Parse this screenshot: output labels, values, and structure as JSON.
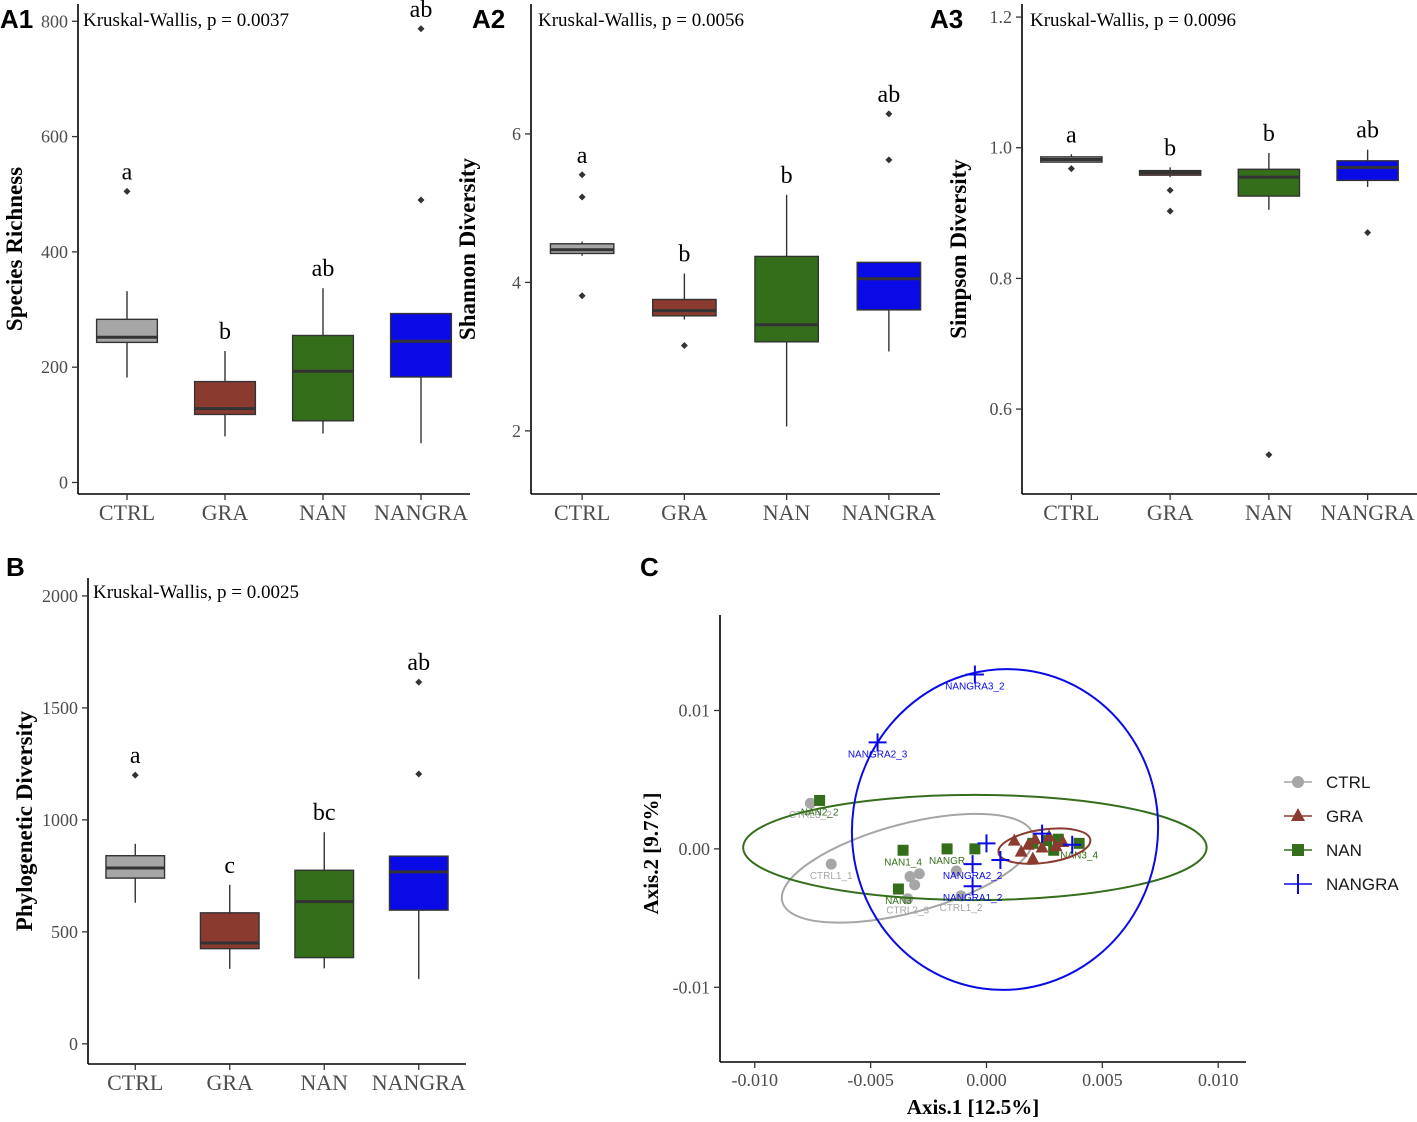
{
  "chart_data": [
    {
      "id": "A1",
      "panel_label": "A1",
      "type": "box",
      "title": "",
      "stat_text": "Kruskal-Wallis, p = 0.0037",
      "xlabel": "",
      "ylabel": "Species Richness",
      "ylim": [
        -20,
        830
      ],
      "yticks": [
        0,
        200,
        400,
        600,
        800
      ],
      "ytick_labels": [
        "0",
        "200",
        "400",
        "600",
        "800"
      ],
      "categories": [
        "CTRL",
        "GRA",
        "NAN",
        "NANGRA"
      ],
      "boxes": [
        {
          "group": "CTRL",
          "low": 182,
          "q1": 243,
          "median": 252,
          "q3": 283,
          "high": 332,
          "outliers": [
            505
          ],
          "letter": "a"
        },
        {
          "group": "GRA",
          "low": 80,
          "q1": 118,
          "median": 128,
          "q3": 175,
          "high": 228,
          "outliers": [],
          "letter": "b"
        },
        {
          "group": "NAN",
          "low": 85,
          "q1": 107,
          "median": 193,
          "q3": 255,
          "high": 337,
          "outliers": [],
          "letter": "ab"
        },
        {
          "group": "NANGRA",
          "low": 68,
          "q1": 183,
          "median": 245,
          "q3": 293,
          "high": 293,
          "outliers": [
            490,
            787
          ],
          "letter": "ab"
        }
      ]
    },
    {
      "id": "A2",
      "panel_label": "A2",
      "type": "box",
      "title": "",
      "stat_text": "Kruskal-Wallis, p = 0.0056",
      "xlabel": "",
      "ylabel": "Shannon Diversity",
      "ylim": [
        1.15,
        7.75
      ],
      "yticks": [
        2,
        4,
        6
      ],
      "ytick_labels": [
        "2",
        "4",
        "6"
      ],
      "categories": [
        "CTRL",
        "GRA",
        "NAN",
        "NANGRA"
      ],
      "boxes": [
        {
          "group": "CTRL",
          "low": 4.36,
          "q1": 4.39,
          "median": 4.44,
          "q3": 4.52,
          "high": 4.55,
          "outliers": [
            5.45,
            5.15,
            3.82
          ],
          "letter": "a"
        },
        {
          "group": "GRA",
          "low": 3.5,
          "q1": 3.55,
          "median": 3.62,
          "q3": 3.77,
          "high": 4.12,
          "outliers": [
            3.15
          ],
          "letter": "b"
        },
        {
          "group": "NAN",
          "low": 2.06,
          "q1": 3.2,
          "median": 3.43,
          "q3": 4.35,
          "high": 5.18,
          "outliers": [],
          "letter": "b"
        },
        {
          "group": "NANGRA",
          "low": 3.07,
          "q1": 3.63,
          "median": 4.05,
          "q3": 4.27,
          "high": 4.27,
          "outliers": [
            5.65,
            6.27
          ],
          "letter": "ab"
        }
      ]
    },
    {
      "id": "A3",
      "panel_label": "A3",
      "type": "box",
      "title": "",
      "stat_text": "Kruskal-Wallis, p = 0.0096",
      "xlabel": "",
      "ylabel": "Simpson Diversity",
      "ylim": [
        0.47,
        1.22
      ],
      "yticks": [
        0.6,
        0.8,
        1.0,
        1.2
      ],
      "ytick_labels": [
        "0.6",
        "0.8",
        "1.0",
        "1.2"
      ],
      "categories": [
        "CTRL",
        "GRA",
        "NAN",
        "NANGRA"
      ],
      "boxes": [
        {
          "group": "CTRL",
          "low": 0.977,
          "q1": 0.978,
          "median": 0.982,
          "q3": 0.986,
          "high": 0.99,
          "outliers": [
            0.968
          ],
          "letter": "a"
        },
        {
          "group": "GRA",
          "low": 0.955,
          "q1": 0.958,
          "median": 0.962,
          "q3": 0.965,
          "high": 0.97,
          "outliers": [
            0.935,
            0.903
          ],
          "letter": "b"
        },
        {
          "group": "NAN",
          "low": 0.905,
          "q1": 0.926,
          "median": 0.955,
          "q3": 0.967,
          "high": 0.992,
          "outliers": [
            0.53
          ],
          "letter": "b"
        },
        {
          "group": "NANGRA",
          "low": 0.94,
          "q1": 0.95,
          "median": 0.97,
          "q3": 0.98,
          "high": 0.997,
          "outliers": [
            0.87
          ],
          "letter": "ab"
        }
      ]
    },
    {
      "id": "B",
      "panel_label": "B",
      "type": "box",
      "title": "",
      "stat_text": "Kruskal-Wallis, p = 0.0025",
      "xlabel": "",
      "ylabel": "Phylogenetic Diversity",
      "ylim": [
        -90,
        2080
      ],
      "yticks": [
        0,
        500,
        1000,
        1500,
        2000
      ],
      "ytick_labels": [
        "0",
        "500",
        "1000",
        "1500",
        "2000"
      ],
      "categories": [
        "CTRL",
        "GRA",
        "NAN",
        "NANGRA"
      ],
      "boxes": [
        {
          "group": "CTRL",
          "low": 630,
          "q1": 740,
          "median": 785,
          "q3": 840,
          "high": 893,
          "outliers": [
            1200
          ],
          "letter": "a"
        },
        {
          "group": "GRA",
          "low": 335,
          "q1": 425,
          "median": 450,
          "q3": 585,
          "high": 710,
          "outliers": [],
          "letter": "c"
        },
        {
          "group": "NAN",
          "low": 337,
          "q1": 385,
          "median": 635,
          "q3": 775,
          "high": 945,
          "outliers": [],
          "letter": "bc"
        },
        {
          "group": "NANGRA",
          "low": 290,
          "q1": 597,
          "median": 768,
          "q3": 838,
          "high": 838,
          "outliers": [
            1205,
            1615
          ],
          "letter": "ab"
        }
      ]
    },
    {
      "id": "C",
      "panel_label": "C",
      "type": "scatter",
      "title": "",
      "xlabel": "Axis.1   [12.5%]",
      "ylabel": "Axis.2   [9.7%]",
      "xlim": [
        -0.0115,
        0.0112
      ],
      "ylim": [
        -0.0154,
        0.0169
      ],
      "xticks": [
        -0.01,
        -0.005,
        0.0,
        0.005,
        0.01
      ],
      "xtick_labels": [
        "-0.010",
        "-0.005",
        "0.000",
        "0.005",
        "0.010"
      ],
      "yticks": [
        -0.01,
        0.0,
        0.01
      ],
      "ytick_labels": [
        "-0.01",
        "0.00",
        "0.01"
      ],
      "legend": [
        "CTRL",
        "GRA",
        "NAN",
        "NANGRA"
      ],
      "legend_position": "right",
      "series": [
        {
          "name": "CTRL",
          "marker": "circle",
          "points": [
            {
              "x": -0.0076,
              "y": 0.0033,
              "label": "CTRL3_2"
            },
            {
              "x": -0.0067,
              "y": -0.0011,
              "label": "CTRL1_1"
            },
            {
              "x": -0.0033,
              "y": -0.002,
              "label": ""
            },
            {
              "x": -0.0031,
              "y": -0.0026,
              "label": ""
            },
            {
              "x": -0.0029,
              "y": -0.0018,
              "label": ""
            },
            {
              "x": -0.0034,
              "y": -0.0036,
              "label": "CTRL2_3"
            },
            {
              "x": -0.0013,
              "y": -0.0016,
              "label": ""
            },
            {
              "x": -0.0011,
              "y": -0.0034,
              "label": "CTRL1_2"
            }
          ],
          "ellipse": {
            "cx": -0.0034,
            "cy": -0.0014,
            "rx": 0.0056,
            "ry": 0.0032,
            "angle_deg": 15
          }
        },
        {
          "name": "GRA",
          "marker": "triangle",
          "points": [
            {
              "x": 0.0012,
              "y": 0.0006,
              "label": ""
            },
            {
              "x": 0.0015,
              "y": -0.0002,
              "label": ""
            },
            {
              "x": 0.0018,
              "y": 0.0003,
              "label": ""
            },
            {
              "x": 0.0021,
              "y": 0.0007,
              "label": ""
            },
            {
              "x": 0.0024,
              "y": 0.0001,
              "label": ""
            },
            {
              "x": 0.0027,
              "y": 0.0009,
              "label": ""
            },
            {
              "x": 0.003,
              "y": 0.0002,
              "label": ""
            },
            {
              "x": 0.0033,
              "y": 0.0005,
              "label": ""
            },
            {
              "x": 0.002,
              "y": -0.0007,
              "label": ""
            }
          ],
          "ellipse": {
            "cx": 0.0025,
            "cy": 0.0002,
            "rx": 0.002,
            "ry": 0.0012,
            "angle_deg": 8
          }
        },
        {
          "name": "NAN",
          "marker": "square",
          "points": [
            {
              "x": -0.0072,
              "y": 0.0035,
              "label": "NAN2_2"
            },
            {
              "x": -0.0038,
              "y": -0.0029,
              "label": "NAN3"
            },
            {
              "x": -0.0036,
              "y": -0.0001,
              "label": "NAN1_4"
            },
            {
              "x": -0.0017,
              "y": 0.0,
              "label": "NANGR"
            },
            {
              "x": -0.0005,
              "y": 0.0,
              "label": ""
            },
            {
              "x": 0.002,
              "y": 0.0004,
              "label": ""
            },
            {
              "x": 0.0026,
              "y": 0.0006,
              "label": ""
            },
            {
              "x": 0.0029,
              "y": -0.0001,
              "label": ""
            },
            {
              "x": 0.0031,
              "y": 0.0007,
              "label": ""
            },
            {
              "x": 0.004,
              "y": 0.0004,
              "label": "NAN3_4"
            }
          ],
          "ellipse": {
            "cx": -0.0005,
            "cy": 0.0001,
            "rx": 0.01,
            "ry": 0.0038,
            "angle_deg": 0
          }
        },
        {
          "name": "NANGRA",
          "marker": "cross",
          "points": [
            {
              "x": -0.0005,
              "y": 0.0126,
              "label": "NANGRA3_2"
            },
            {
              "x": -0.0047,
              "y": 0.0077,
              "label": "NANGRA2_3"
            },
            {
              "x": -0.0006,
              "y": -0.0027,
              "label": "NANGRA1_2"
            },
            {
              "x": -0.0006,
              "y": -0.0011,
              "label": "NANGRA2_2"
            },
            {
              "x": 0.0,
              "y": 0.0004,
              "label": ""
            },
            {
              "x": 0.0006,
              "y": -0.0008,
              "label": ""
            },
            {
              "x": 0.0024,
              "y": 0.0011,
              "label": ""
            },
            {
              "x": 0.0037,
              "y": 0.0003,
              "label": ""
            }
          ],
          "ellipse": {
            "cx": 0.0008,
            "cy": 0.0014,
            "rx": 0.0066,
            "ry": 0.0116,
            "angle_deg": -8
          }
        }
      ]
    }
  ],
  "colors": {
    "CTRL": "#a6a6a6",
    "GRA": "#8b3a2f",
    "NAN": "#356e1a",
    "NANGRA": "#0a0ae6",
    "median": "#333333",
    "axis": "#000000",
    "tick_text": "#4d4d4d"
  }
}
